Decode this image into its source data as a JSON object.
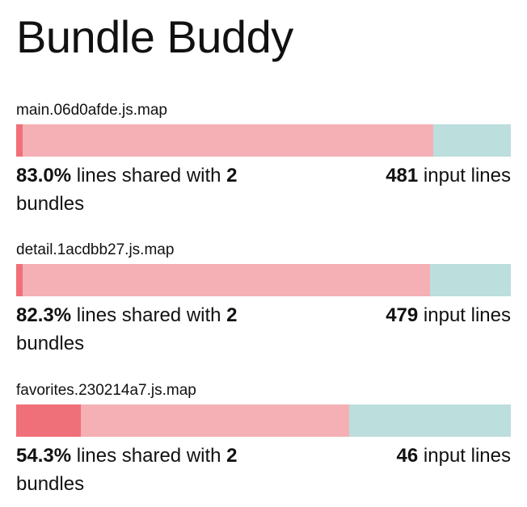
{
  "app": {
    "title": "Bundle Buddy"
  },
  "colors": {
    "unique": "#f07079",
    "shared": "#f4b0b4",
    "other": "#bcdedd"
  },
  "labels": {
    "shared_text": "lines shared with",
    "bundles_text": "bundles",
    "input_lines_text": "input lines"
  },
  "bundles": [
    {
      "name": "main.06d0afde.js.map",
      "shared_percent": "83.0%",
      "bundle_count": "2",
      "input_lines": "481",
      "unique_fraction": 0.013,
      "shared_fraction": 0.83
    },
    {
      "name": "detail.1acdbb27.js.map",
      "shared_percent": "82.3%",
      "bundle_count": "2",
      "input_lines": "479",
      "unique_fraction": 0.013,
      "shared_fraction": 0.823
    },
    {
      "name": "favorites.230214a7.js.map",
      "shared_percent": "54.3%",
      "bundle_count": "2",
      "input_lines": "46",
      "unique_fraction": 0.13,
      "shared_fraction": 0.543
    }
  ]
}
